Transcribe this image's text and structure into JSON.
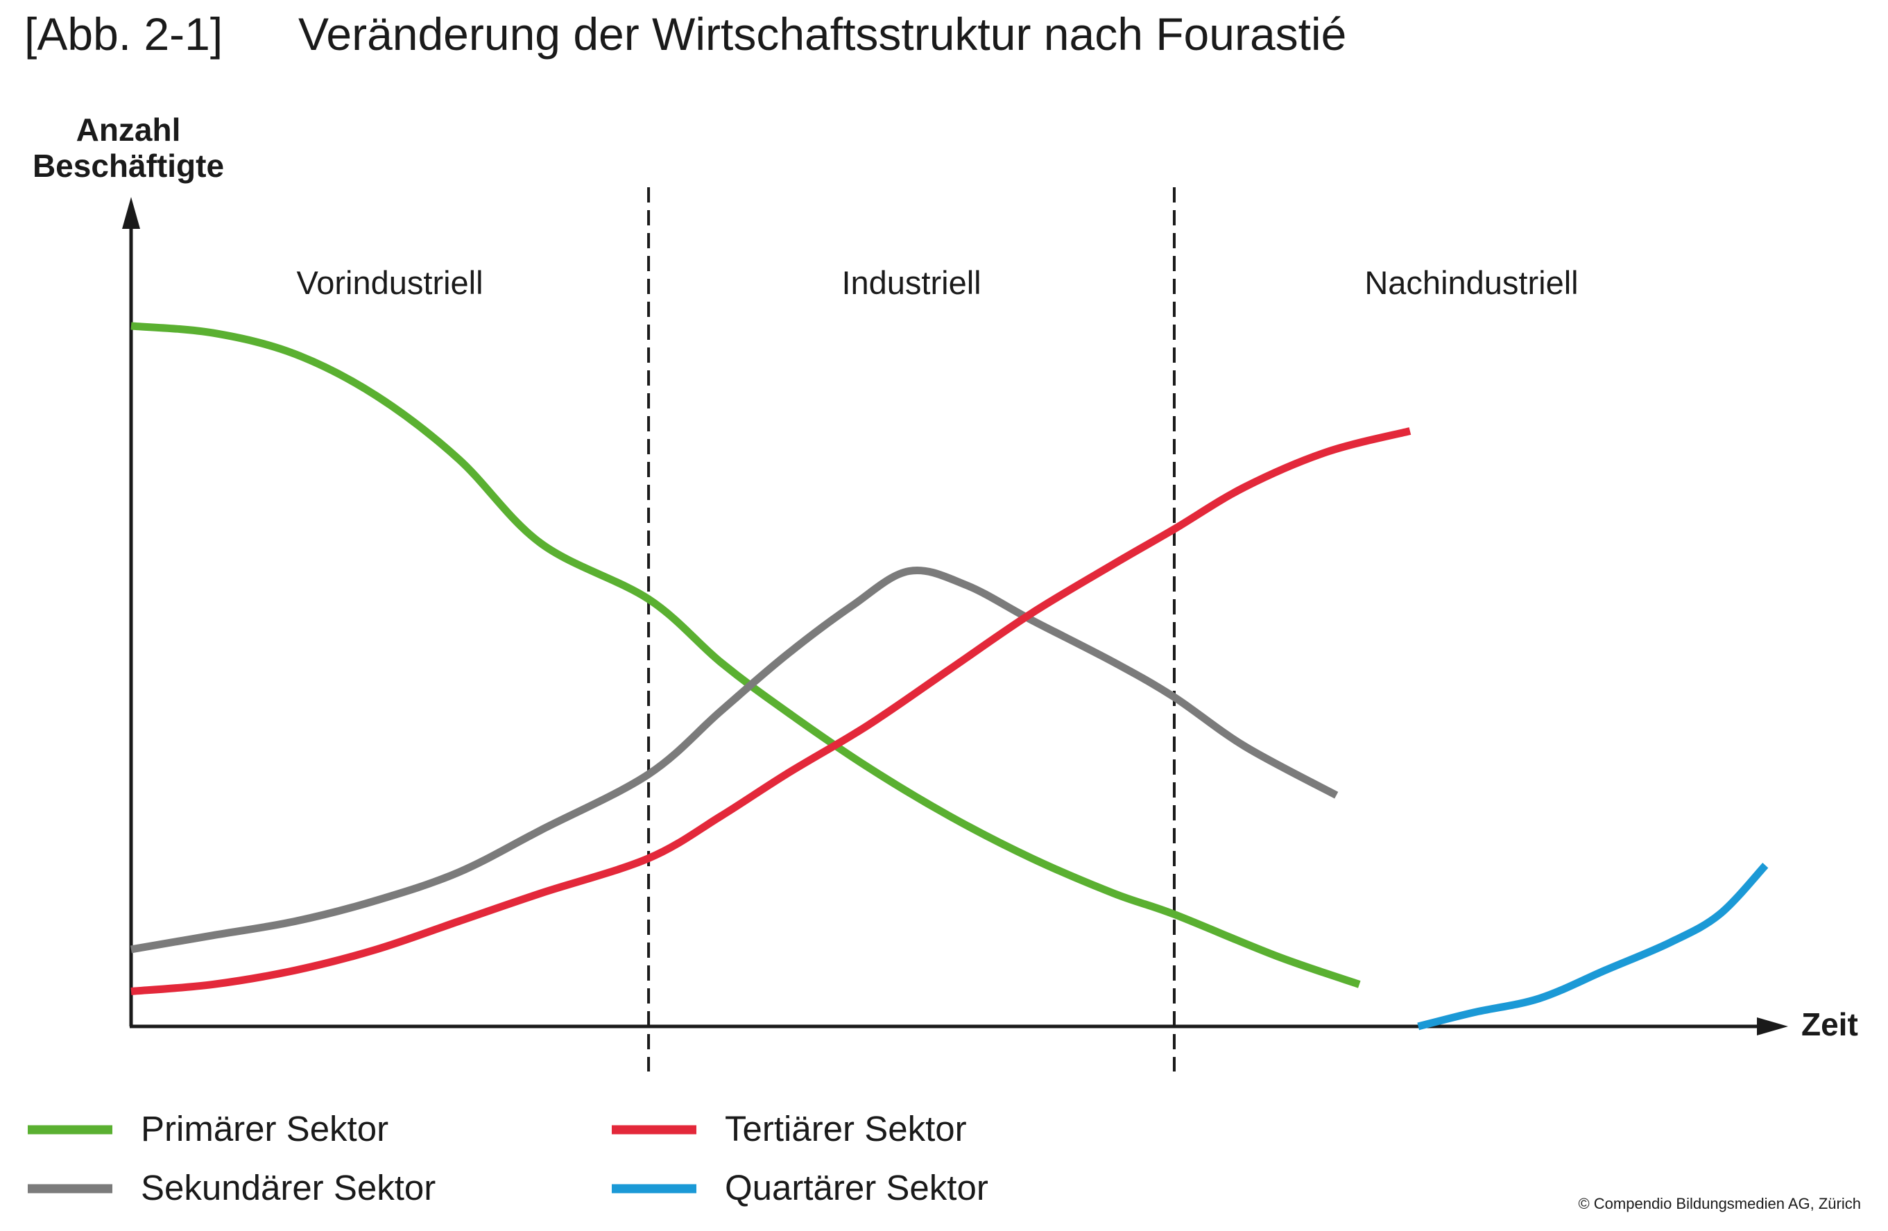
{
  "header": {
    "figure_number": "[Abb. 2-1]",
    "title": "Veränderung der Wirtschaftsstruktur nach Fourastié"
  },
  "chart_data": {
    "type": "line",
    "title": "Veränderung der Wirtschaftsstruktur nach Fourastié",
    "ylabel_line1": "Anzahl",
    "ylabel_line2": "Beschäftigte",
    "xlabel": "Zeit",
    "xlim": [
      0,
      100
    ],
    "ylim": [
      0,
      100
    ],
    "grid": false,
    "legend_position": "bottom",
    "phases": [
      {
        "label": "Vorindustriell",
        "start": 0,
        "end": 31.6
      },
      {
        "label": "Industriell",
        "start": 31.6,
        "end": 63.7
      },
      {
        "label": "Nachindustriell",
        "start": 63.7,
        "end": 100
      }
    ],
    "phase_boundaries": [
      31.6,
      63.7
    ],
    "series": [
      {
        "name": "Primärer Sektor",
        "color": "#5AB031",
        "x": [
          0,
          5,
          10,
          15,
          20,
          25,
          31.6,
          36,
          40,
          45,
          50,
          55,
          60,
          63.7,
          70,
          75
        ],
        "y": [
          100,
          99,
          96,
          90,
          81,
          69,
          61,
          52,
          45,
          37,
          30,
          24,
          19,
          16,
          10,
          6
        ]
      },
      {
        "name": "Sekundärer Sektor",
        "color": "#7B7B7B",
        "x": [
          0,
          5,
          10,
          15,
          20,
          25,
          31.6,
          36,
          40,
          44,
          47.5,
          51,
          55,
          60,
          63.7,
          68,
          73.6
        ],
        "y": [
          11,
          13,
          15,
          18,
          22,
          28,
          36,
          45,
          53,
          60,
          65,
          63,
          58,
          52,
          47,
          40,
          33
        ]
      },
      {
        "name": "Tertiärer Sektor",
        "color": "#E3283A",
        "x": [
          0,
          5,
          10,
          15,
          20,
          25,
          31.6,
          36,
          40,
          45,
          50,
          55,
          60,
          63.7,
          68,
          73,
          78.1
        ],
        "y": [
          5,
          6,
          8,
          11,
          15,
          19,
          24,
          30,
          36,
          43,
          51,
          59,
          66,
          71,
          77,
          82,
          85
        ]
      },
      {
        "name": "Quartärer Sektor",
        "color": "#1B99D6",
        "x": [
          78.6,
          82,
          86,
          90,
          94,
          97,
          99.8
        ],
        "y": [
          0,
          2,
          4,
          8,
          12,
          16,
          23
        ]
      }
    ]
  },
  "footer": {
    "copyright": "© Compendio Bildungsmedien AG, Zürich"
  }
}
